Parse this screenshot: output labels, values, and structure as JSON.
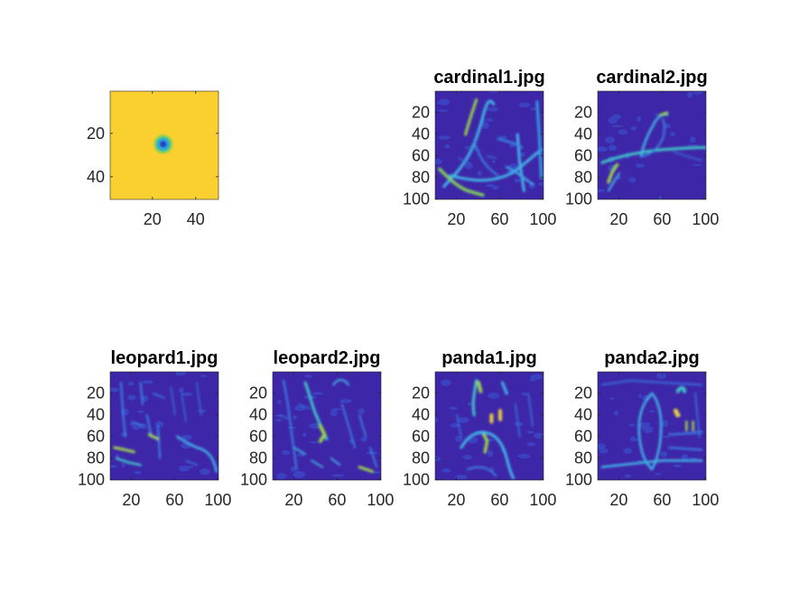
{
  "chart_data": [
    {
      "type": "heatmap",
      "title": "",
      "xlim": [
        0.5,
        50.5
      ],
      "ylim": [
        0.5,
        50.5
      ],
      "xticks": [
        20,
        40
      ],
      "yticks": [
        20,
        40
      ],
      "xtick_labels": [
        "20",
        "40"
      ],
      "ytick_labels": [
        "20",
        "40"
      ],
      "content": "gaussian-kernel",
      "center": [
        25,
        25
      ],
      "colors": {
        "background": "#f9d030",
        "center": "#3060c8"
      }
    },
    {
      "type": "heatmap",
      "title": "cardinal1.jpg",
      "xlim": [
        0.5,
        100.5
      ],
      "ylim": [
        0.5,
        100.5
      ],
      "xticks": [
        20,
        60,
        100
      ],
      "yticks": [
        20,
        40,
        60,
        80,
        100
      ],
      "xtick_labels": [
        "20",
        "60",
        "100"
      ],
      "ytick_labels": [
        "20",
        "40",
        "60",
        "80",
        "100"
      ],
      "content": "filter-response"
    },
    {
      "type": "heatmap",
      "title": "cardinal2.jpg",
      "xlim": [
        0.5,
        100.5
      ],
      "ylim": [
        0.5,
        100.5
      ],
      "xticks": [
        20,
        60,
        100
      ],
      "yticks": [
        20,
        40,
        60,
        80,
        100
      ],
      "xtick_labels": [
        "20",
        "60",
        "100"
      ],
      "ytick_labels": [
        "20",
        "40",
        "60",
        "80",
        "100"
      ],
      "content": "filter-response"
    },
    {
      "type": "heatmap",
      "title": "leopard1.jpg",
      "xlim": [
        0.5,
        100.5
      ],
      "ylim": [
        0.5,
        100.5
      ],
      "xticks": [
        20,
        60,
        100
      ],
      "yticks": [
        20,
        40,
        60,
        80,
        100
      ],
      "xtick_labels": [
        "20",
        "60",
        "100"
      ],
      "ytick_labels": [
        "20",
        "40",
        "60",
        "80",
        "100"
      ],
      "content": "filter-response"
    },
    {
      "type": "heatmap",
      "title": "leopard2.jpg",
      "xlim": [
        0.5,
        100.5
      ],
      "ylim": [
        0.5,
        100.5
      ],
      "xticks": [
        20,
        60,
        100
      ],
      "yticks": [
        20,
        40,
        60,
        80,
        100
      ],
      "xtick_labels": [
        "20",
        "60",
        "100"
      ],
      "ytick_labels": [
        "20",
        "40",
        "60",
        "80",
        "100"
      ],
      "content": "filter-response"
    },
    {
      "type": "heatmap",
      "title": "panda1.jpg",
      "xlim": [
        0.5,
        100.5
      ],
      "ylim": [
        0.5,
        100.5
      ],
      "xticks": [
        20,
        60,
        100
      ],
      "yticks": [
        20,
        40,
        60,
        80,
        100
      ],
      "xtick_labels": [
        "20",
        "60",
        "100"
      ],
      "ytick_labels": [
        "20",
        "40",
        "60",
        "80",
        "100"
      ],
      "content": "filter-response"
    },
    {
      "type": "heatmap",
      "title": "panda2.jpg",
      "xlim": [
        0.5,
        100.5
      ],
      "ylim": [
        0.5,
        100.5
      ],
      "xticks": [
        20,
        60,
        100
      ],
      "yticks": [
        20,
        40,
        60,
        80,
        100
      ],
      "xtick_labels": [
        "20",
        "60",
        "100"
      ],
      "ytick_labels": [
        "20",
        "40",
        "60",
        "80",
        "100"
      ],
      "content": "filter-response"
    }
  ],
  "colormap": {
    "low": "#3e26a8",
    "mid_low": "#2f6ee6",
    "mid": "#24c4c0",
    "mid_high": "#93d54c",
    "high": "#f9d030"
  }
}
